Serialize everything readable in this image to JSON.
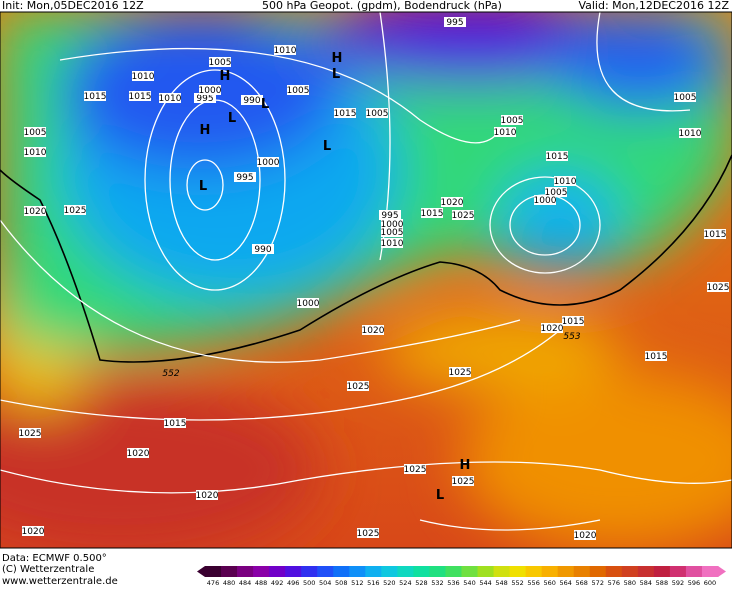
{
  "header": {
    "init": "Init: Mon,05DEC2016 12Z",
    "title": "500 hPa Geopot. (gpdm), Bodendruck (hPa)",
    "valid": "Valid: Mon,12DEC2016 12Z"
  },
  "footer": {
    "data": "Data: ECMWF  0.500°",
    "copyright": "(C) Wetterzentrale",
    "url": "www.wetterzentrale.de"
  },
  "colorbar": {
    "levels": [
      476,
      480,
      484,
      488,
      492,
      496,
      500,
      504,
      508,
      512,
      516,
      520,
      524,
      528,
      532,
      536,
      540,
      544,
      548,
      552,
      556,
      560,
      564,
      568,
      572,
      576,
      580,
      584,
      588,
      592,
      596,
      600
    ],
    "colors": [
      "#3a0030",
      "#5a0050",
      "#7a0080",
      "#8a00a8",
      "#7000c8",
      "#5010e0",
      "#3030f0",
      "#2050f8",
      "#1070f8",
      "#1090f8",
      "#10b0f0",
      "#10c8e0",
      "#10d8c0",
      "#10e0a0",
      "#20e080",
      "#40e060",
      "#70e040",
      "#a0e020",
      "#d0e010",
      "#f0e000",
      "#f8c800",
      "#f8b000",
      "#f09800",
      "#e88000",
      "#e06800",
      "#d85010",
      "#d04020",
      "#c83030",
      "#c02040",
      "#d03070",
      "#e050a0",
      "#f070c0"
    ]
  },
  "map": {
    "isobar_labels": [
      "995",
      "1010",
      "1005",
      "1010",
      "1015",
      "1015",
      "1010",
      "995",
      "1000",
      "1005",
      "990",
      "1015",
      "1005",
      "1010",
      "1005",
      "1005",
      "1010",
      "1005",
      "1010",
      "1015",
      "1000",
      "995",
      "1010",
      "1005",
      "1000",
      "1020",
      "1015",
      "1025",
      "1020",
      "1025",
      "995",
      "1000",
      "1005",
      "990",
      "1010",
      "1015",
      "1025",
      "1000",
      "1020",
      "1015",
      "1020",
      "1015",
      "1025",
      "1025",
      "1015",
      "1025",
      "1020",
      "1025",
      "1025",
      "1020",
      "1020",
      "1025",
      "1020"
    ],
    "pressure_centers": [
      "H",
      "H",
      "L",
      "L",
      "H",
      "L",
      "L",
      "L",
      "H",
      "L"
    ],
    "contour_labels": [
      "552",
      "553"
    ]
  }
}
